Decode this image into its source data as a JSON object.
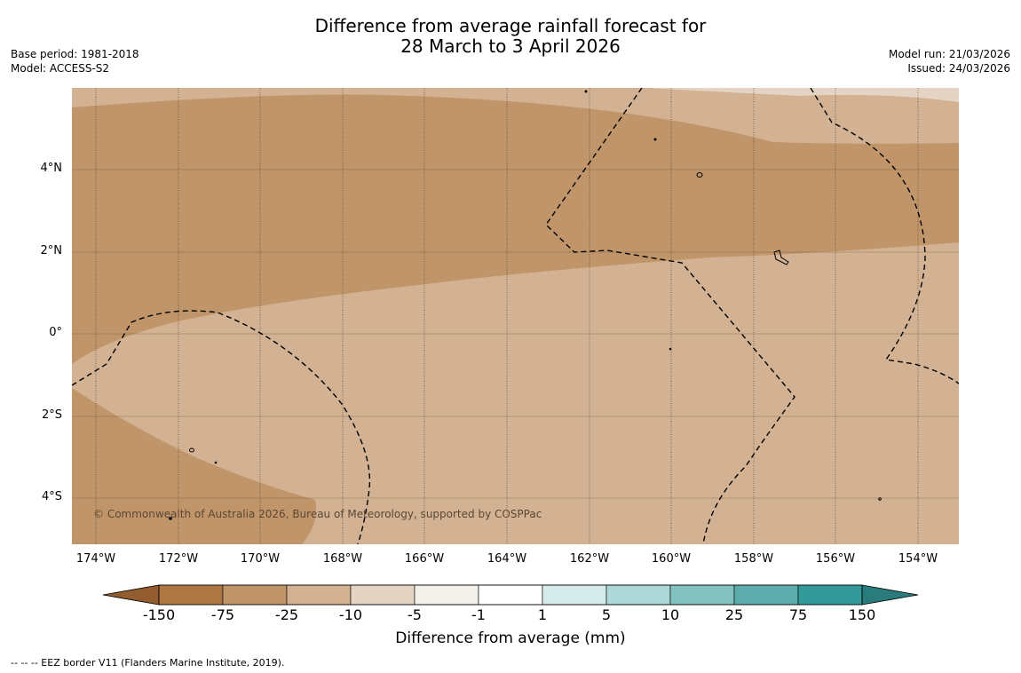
{
  "title": {
    "line1": "Difference from average rainfall forecast for",
    "line2": "28 March to 3 April 2026"
  },
  "meta": {
    "base_period": "Base period: 1981-2018",
    "model": "Model: ACCESS-S2",
    "model_run": "Model run: 21/03/2026",
    "issued": "Issued: 24/03/2026"
  },
  "map": {
    "copyright": "© Commonwealth of Australia 2026, Bureau of Meteorology, supported by COSPPac",
    "lat_labels": [
      "4°N",
      "2°N",
      "0°",
      "2°S",
      "4°S"
    ],
    "lon_labels": [
      "174°W",
      "172°W",
      "170°W",
      "168°W",
      "166°W",
      "164°W",
      "162°W",
      "160°W",
      "158°W",
      "156°W",
      "154°W"
    ]
  },
  "colorbar": {
    "title": "Difference from average (mm)",
    "tick_labels": [
      "-150",
      "-75",
      "-25",
      "-10",
      "-5",
      "-1",
      "1",
      "5",
      "10",
      "25",
      "75",
      "150"
    ],
    "colors": [
      "#ae7642",
      "#c0956a",
      "#d2b292",
      "#e5d4c4",
      "#f3efea",
      "#ffffff",
      "#d5ecea",
      "#add8d7",
      "#84c2c1",
      "#5cadac",
      "#349999"
    ],
    "extend_low_color": "#935c2e",
    "extend_high_color": "#2a7b7b"
  },
  "map_colors": {
    "dark_region": "#c0956a",
    "light_region": "#d2b292",
    "pale_region": "#e5d4c4",
    "eez_line": "#000000"
  },
  "footer": {
    "eez_note": "--  --  -- EEZ border V11 (Flanders Marine Institute, 2019)."
  }
}
